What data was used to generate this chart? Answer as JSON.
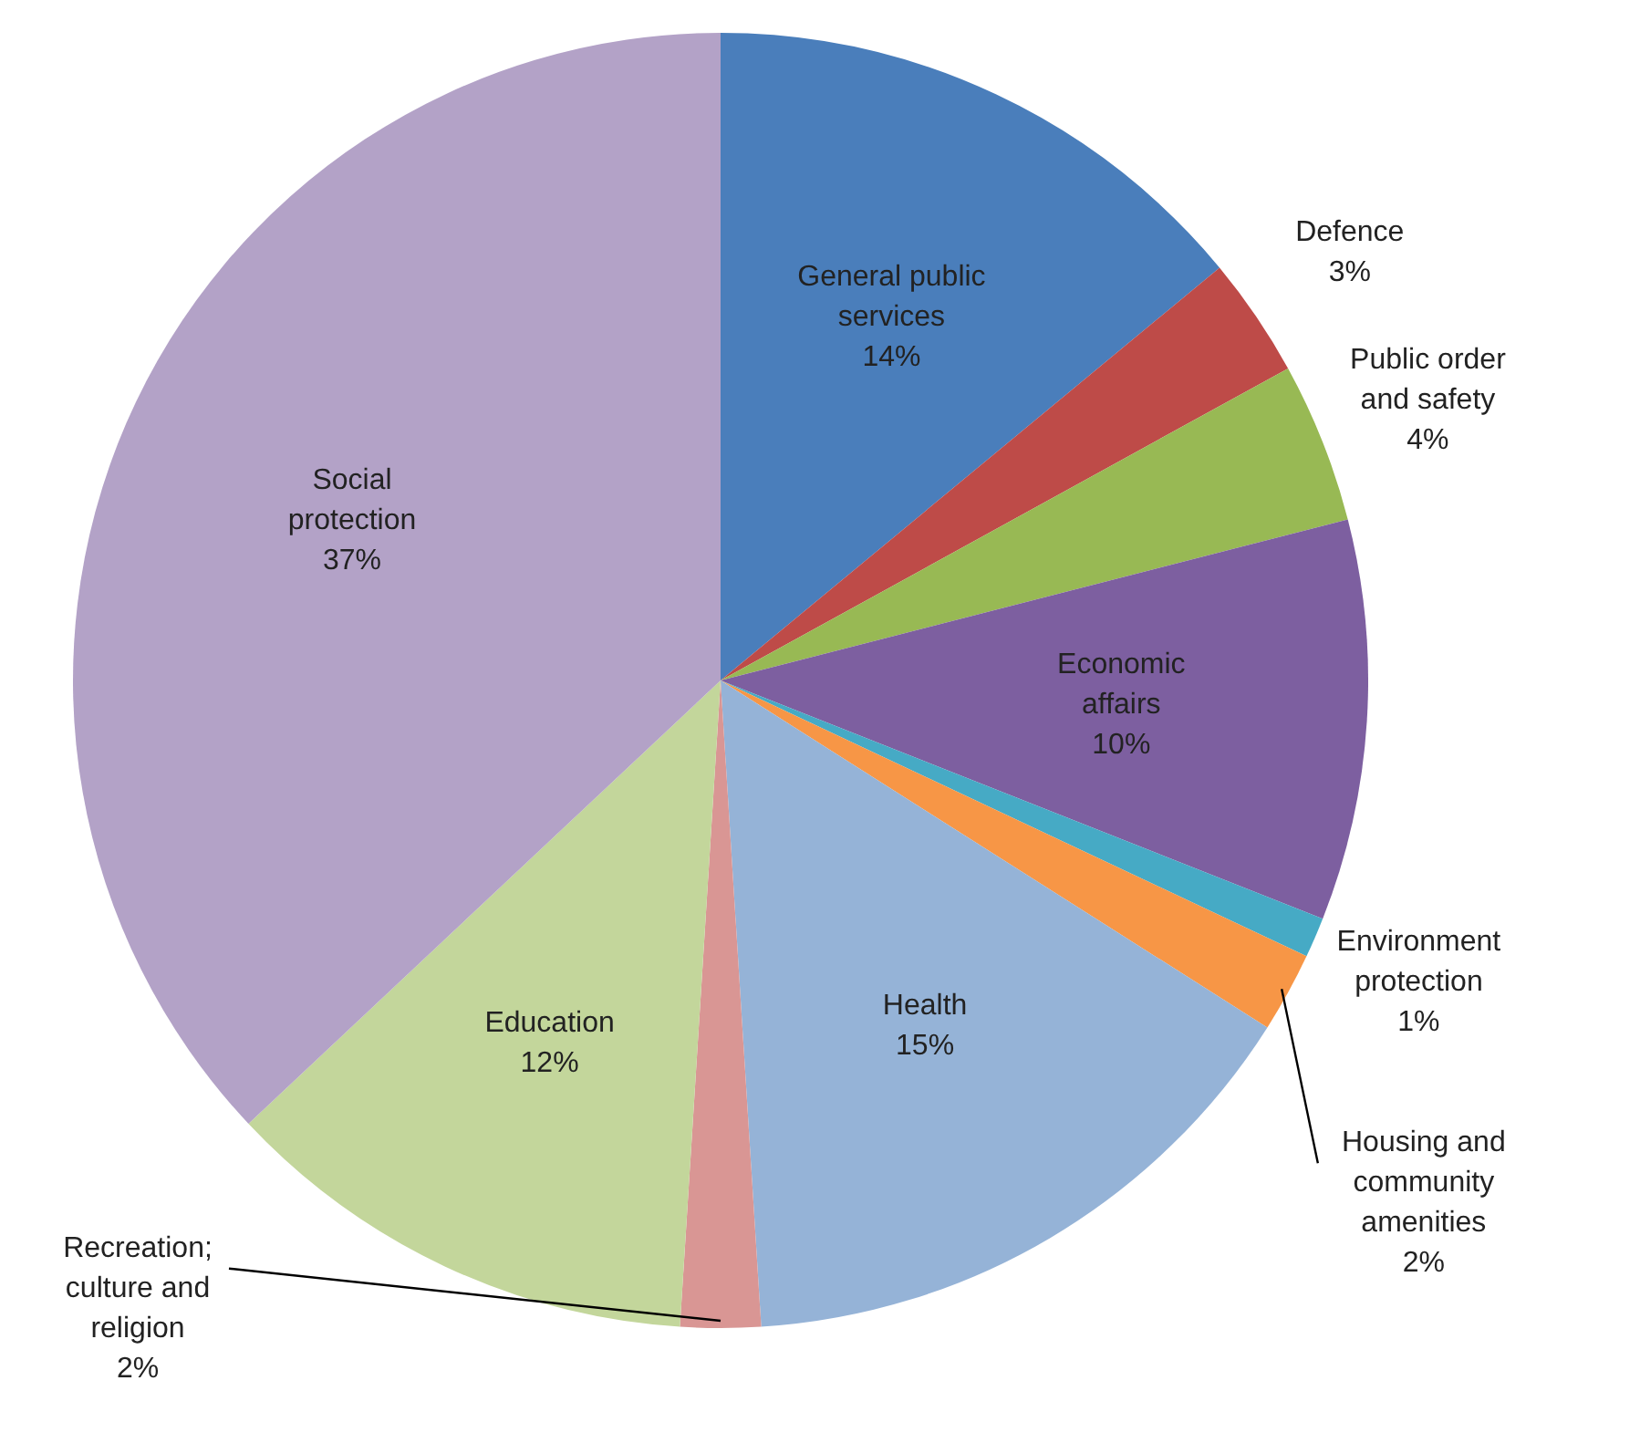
{
  "chart_data": {
    "type": "pie",
    "categories": [
      "General public services",
      "Defence",
      "Public order and safety",
      "Economic affairs",
      "Environment protection",
      "Housing and community amenities",
      "Health",
      "Recreation; culture and religion",
      "Education",
      "Social protection"
    ],
    "values": [
      14,
      3,
      4,
      10,
      1,
      2,
      15,
      2,
      12,
      37
    ],
    "value_labels": [
      "14%",
      "3%",
      "4%",
      "10%",
      "1%",
      "2%",
      "15%",
      "2%",
      "12%",
      "37%"
    ],
    "colors": [
      "#4a7ebb",
      "#be4b48",
      "#98b954",
      "#7d5fa0",
      "#46aac5",
      "#f79646",
      "#95b3d7",
      "#d99694",
      "#c3d69b",
      "#b3a2c7"
    ],
    "legend": false
  }
}
